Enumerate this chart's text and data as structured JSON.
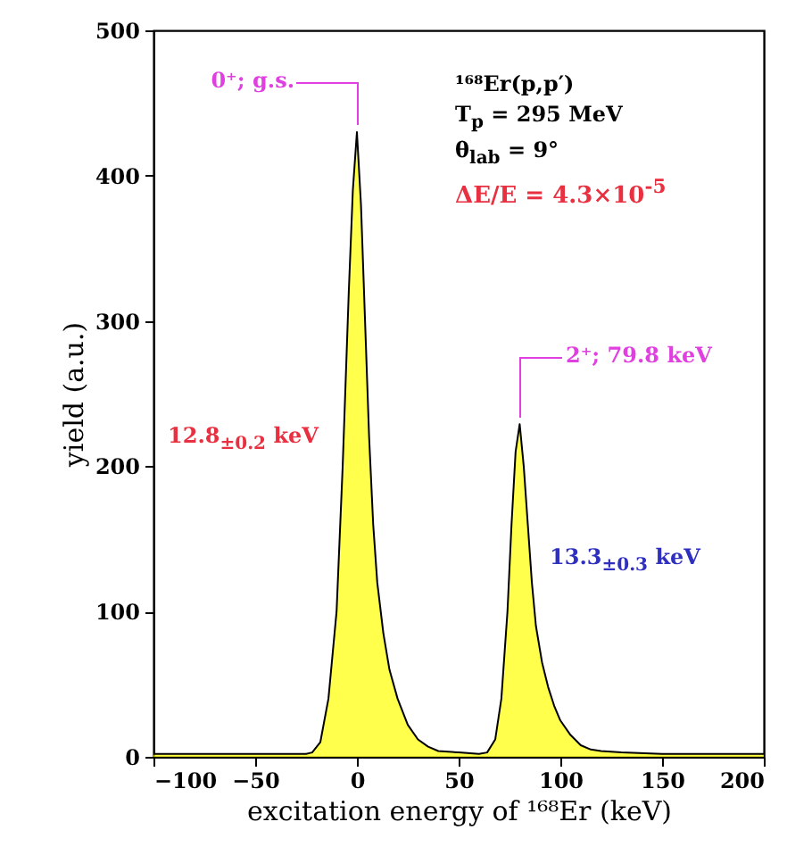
{
  "chart_data": {
    "type": "area",
    "xlabel": "excitation energy of ¹⁶⁸Er (keV)",
    "ylabel": "yield (a.u.)",
    "x": [
      -100,
      -80,
      -60,
      -40,
      -25,
      -22,
      -18,
      -14,
      -10,
      -7,
      -4,
      -2,
      0,
      2,
      4,
      6,
      8,
      10,
      13,
      16,
      20,
      25,
      30,
      35,
      40,
      50,
      60,
      64,
      68,
      71,
      74,
      76,
      78,
      80,
      82,
      84,
      86,
      88,
      91,
      94,
      97,
      100,
      105,
      110,
      115,
      120,
      130,
      150,
      175,
      200
    ],
    "series": [
      {
        "color": "#ffff00",
        "values": [
          2,
          2,
          2,
          2,
          2,
          3,
          10,
          40,
          100,
          200,
          320,
          390,
          430,
          380,
          300,
          220,
          160,
          120,
          85,
          60,
          40,
          22,
          12,
          7,
          4,
          3,
          2,
          3,
          12,
          40,
          100,
          160,
          210,
          229,
          200,
          160,
          120,
          90,
          65,
          48,
          35,
          25,
          15,
          8,
          5,
          4,
          3,
          2,
          2,
          2
        ]
      }
    ],
    "xlim": [
      -100,
      200
    ],
    "xticks": [
      -100,
      -50,
      0,
      50,
      100,
      150,
      200
    ],
    "ylim": [
      0,
      500
    ],
    "yticks": [
      0,
      100,
      200,
      300,
      400,
      500
    ],
    "annotations": [
      "0⁺; g.s.",
      "2⁺; 79.8 keV",
      "12.8$_{±0.2}$ keV",
      "13.3$_{±0.3}$ keV",
      "¹⁶⁸Er(p,p′)",
      "T$_{p}$ = 295 MeV",
      "θ$_{lab}$ = 9°",
      "ΔE/E = 4.3×10$^{-5}$"
    ]
  }
}
